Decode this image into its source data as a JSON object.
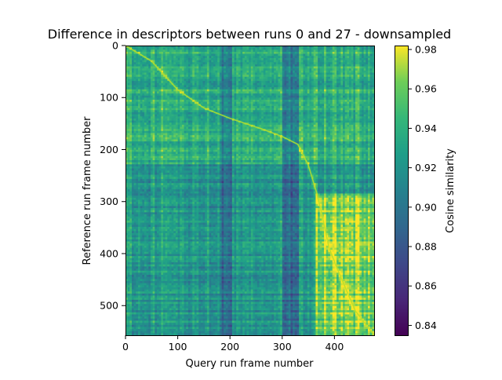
{
  "chart_data": {
    "type": "heatmap",
    "title": "Difference in descriptors between runs 0 and 27 - downsampled",
    "xlabel": "Query run frame number",
    "ylabel": "Reference run frame number",
    "xlim": [
      0,
      476
    ],
    "ylim": [
      557,
      0
    ],
    "x_ticks": [
      0,
      100,
      200,
      300,
      400
    ],
    "y_ticks": [
      0,
      100,
      200,
      300,
      400,
      500
    ],
    "colorbar": {
      "label": "Cosine similarity",
      "range": [
        0.835,
        0.982
      ],
      "ticks": [
        0.84,
        0.86,
        0.88,
        0.9,
        0.92,
        0.94,
        0.96,
        0.98
      ],
      "tick_labels": [
        "0.84",
        "0.86",
        "0.88",
        "0.90",
        "0.92",
        "0.94",
        "0.96",
        "0.98"
      ],
      "colormap": "viridis"
    },
    "grid": false,
    "diagonal_path": {
      "x": [
        0,
        50,
        100,
        150,
        200,
        260,
        300,
        330,
        350,
        365,
        375,
        390,
        410,
        440,
        476
      ],
      "y": [
        0,
        30,
        85,
        120,
        140,
        160,
        175,
        190,
        230,
        280,
        320,
        390,
        440,
        510,
        557
      ]
    },
    "regions": [
      {
        "x_range": [
          365,
          476
        ],
        "y_range": [
          285,
          557
        ],
        "level": 0.965
      },
      {
        "x_range": [
          0,
          476
        ],
        "y_range": [
          230,
          557
        ],
        "level": 0.925
      },
      {
        "x_range": [
          0,
          476
        ],
        "y_range": [
          0,
          230
        ],
        "level": 0.94
      }
    ],
    "dark_bands_x": [
      [
        180,
        205
      ],
      [
        300,
        330
      ]
    ],
    "colors": {
      "viridis_low": "#440154",
      "viridis_high": "#fde725"
    }
  }
}
